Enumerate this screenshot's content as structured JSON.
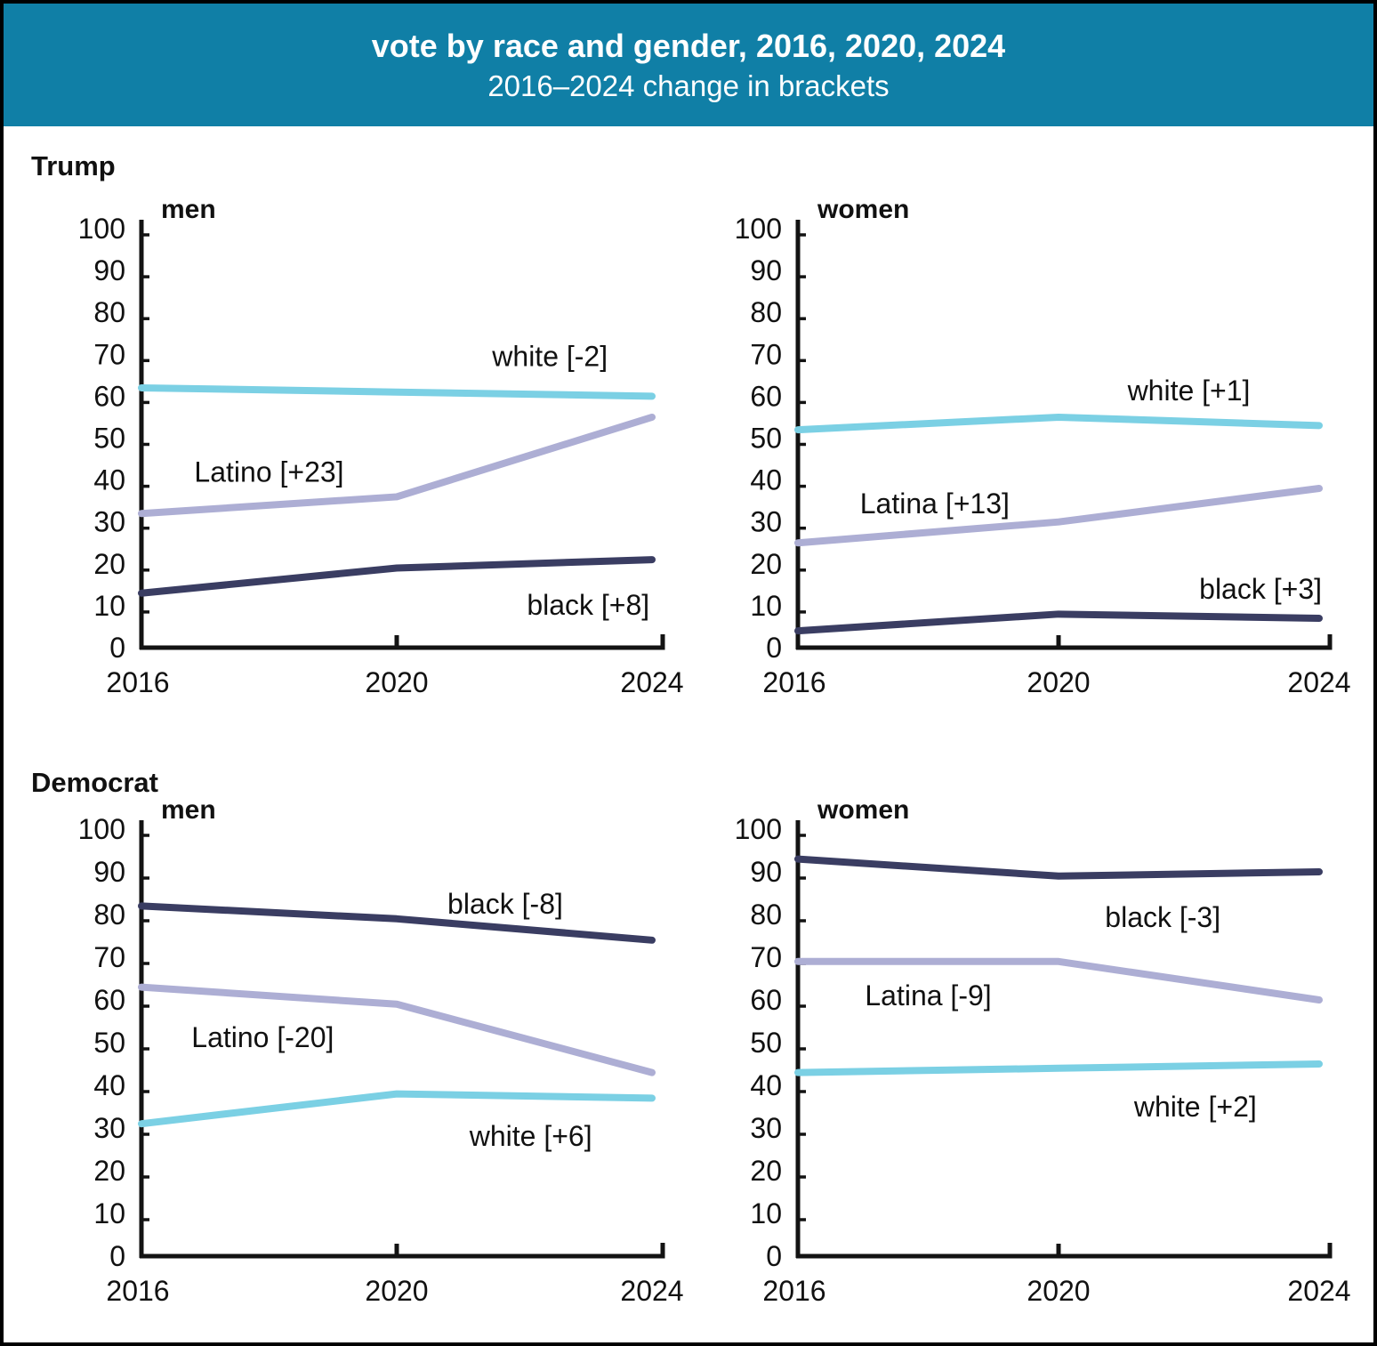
{
  "header": {
    "title": "vote by race and gender, 2016, 2020, 2024",
    "subtitle": "2016–2024 change in brackets",
    "bg_color": "#107fa6",
    "text_color": "#ffffff"
  },
  "sections": [
    {
      "label": "Trump"
    },
    {
      "label": "Democrat"
    }
  ],
  "colors": {
    "white_line": "#7bd0e4",
    "latino_line": "#adaed4",
    "black_line": "#3a3d62",
    "axis": "#131313"
  },
  "chart_data": [
    {
      "type": "line",
      "section": "Trump",
      "title": "men",
      "x": [
        2016,
        2020,
        2024
      ],
      "x_tick_labels": [
        "2016",
        "2020",
        "2024"
      ],
      "ylim": [
        0,
        100
      ],
      "ytick_step": 10,
      "grid": false,
      "legend": "inline-annotations",
      "series": [
        {
          "name": "white",
          "color_key": "white_line",
          "values": [
            62,
            61,
            60
          ],
          "annotation": {
            "text": "white [-2]",
            "x": 2022.4,
            "y": 69.5
          }
        },
        {
          "name": "Latino",
          "color_key": "latino_line",
          "values": [
            32,
            36,
            55
          ],
          "annotation": {
            "text": "Latino [+23]",
            "x": 2018.0,
            "y": 41.9
          }
        },
        {
          "name": "black",
          "color_key": "black_line",
          "values": [
            13,
            19,
            21
          ],
          "annotation": {
            "text": "black [+8]",
            "x": 2023.0,
            "y": 10.2
          }
        }
      ]
    },
    {
      "type": "line",
      "section": "Trump",
      "title": "women",
      "x": [
        2016,
        2020,
        2024
      ],
      "x_tick_labels": [
        "2016",
        "2020",
        "2024"
      ],
      "ylim": [
        0,
        100
      ],
      "ytick_step": 10,
      "grid": false,
      "legend": "inline-annotations",
      "series": [
        {
          "name": "white",
          "color_key": "white_line",
          "values": [
            52,
            55,
            53
          ],
          "annotation": {
            "text": "white [+1]",
            "x": 2022.0,
            "y": 61.4
          }
        },
        {
          "name": "Latina",
          "color_key": "latino_line",
          "values": [
            25,
            30,
            38
          ],
          "annotation": {
            "text": "Latina [+13]",
            "x": 2018.1,
            "y": 34.4
          }
        },
        {
          "name": "black",
          "color_key": "black_line",
          "values": [
            4,
            8,
            7
          ],
          "annotation": {
            "text": "black [+3]",
            "x": 2023.1,
            "y": 14.0
          }
        }
      ]
    },
    {
      "type": "line",
      "section": "Democrat",
      "title": "men",
      "x": [
        2016,
        2020,
        2024
      ],
      "x_tick_labels": [
        "2016",
        "2020",
        "2024"
      ],
      "ylim": [
        0,
        100
      ],
      "ytick_step": 10,
      "grid": false,
      "legend": "inline-annotations",
      "series": [
        {
          "name": "black",
          "color_key": "black_line",
          "values": [
            82,
            79,
            74
          ],
          "annotation": {
            "text": "black [-8]",
            "x": 2021.7,
            "y": 82.5
          }
        },
        {
          "name": "Latino",
          "color_key": "latino_line",
          "values": [
            63,
            59,
            43
          ],
          "annotation": {
            "text": "Latino [-20]",
            "x": 2017.9,
            "y": 51.2
          }
        },
        {
          "name": "white",
          "color_key": "white_line",
          "values": [
            31,
            38,
            37
          ],
          "annotation": {
            "text": "white [+6]",
            "x": 2022.1,
            "y": 28.1
          }
        }
      ]
    },
    {
      "type": "line",
      "section": "Democrat",
      "title": "women",
      "x": [
        2016,
        2020,
        2024
      ],
      "x_tick_labels": [
        "2016",
        "2020",
        "2024"
      ],
      "ylim": [
        0,
        100
      ],
      "ytick_step": 10,
      "grid": false,
      "legend": "inline-annotations",
      "series": [
        {
          "name": "black",
          "color_key": "black_line",
          "values": [
            93,
            89,
            90
          ],
          "annotation": {
            "text": "black [-3]",
            "x": 2021.6,
            "y": 79.4
          }
        },
        {
          "name": "Latina",
          "color_key": "latino_line",
          "values": [
            69,
            69,
            60
          ],
          "annotation": {
            "text": "Latina [-9]",
            "x": 2018.0,
            "y": 61.0
          }
        },
        {
          "name": "white",
          "color_key": "white_line",
          "values": [
            43,
            44,
            45
          ],
          "annotation": {
            "text": "white [+2]",
            "x": 2022.1,
            "y": 35.0
          }
        }
      ]
    }
  ]
}
